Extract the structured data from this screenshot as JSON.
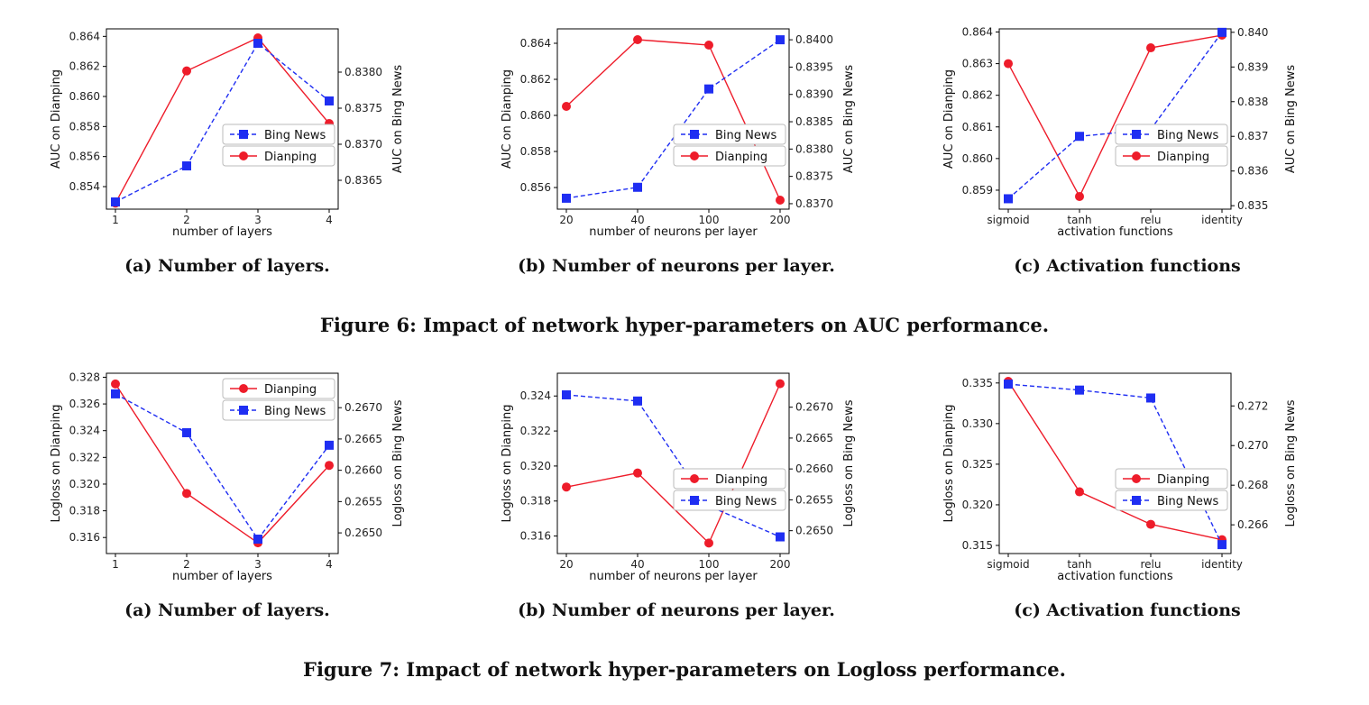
{
  "figure6": {
    "caption": "Figure 6: Impact of network hyper-parameters on AUC performance.",
    "subcaptions": [
      "(a) Number of layers.",
      "(b) Number of neurons per layer.",
      "(c) Activation functions"
    ]
  },
  "figure7": {
    "caption": "Figure 7: Impact of network hyper-parameters on Logloss performance.",
    "subcaptions": [
      "(a) Number of layers.",
      "(b) Number of neurons per layer.",
      "(c) Activation functions"
    ]
  },
  "colors": {
    "dianping": "#ee1c2a",
    "bing": "#1f2ef2"
  },
  "chart_data": [
    {
      "type": "line",
      "figure": "6a",
      "xlabel": "number of layers",
      "categories": [
        "1",
        "2",
        "3",
        "4"
      ],
      "left_axis": {
        "label": "AUC on Dianping",
        "ticks": [
          "0.854",
          "0.856",
          "0.858",
          "0.860",
          "0.862",
          "0.864"
        ],
        "ylim": [
          0.8525,
          0.8645
        ]
      },
      "right_axis": {
        "label": "AUC on Bing News",
        "ticks": [
          "0.8365",
          "0.8370",
          "0.8375",
          "0.8380"
        ],
        "ylim": [
          0.8361,
          0.8386
        ]
      },
      "legend": "center-right",
      "legend_order": [
        "Bing News",
        "Dianping"
      ],
      "series": [
        {
          "name": "Dianping",
          "axis": "left",
          "values": [
            0.8529,
            0.8617,
            0.8639,
            0.8582
          ]
        },
        {
          "name": "Bing News",
          "axis": "right",
          "values": [
            0.8362,
            0.8367,
            0.8384,
            0.8376
          ]
        }
      ]
    },
    {
      "type": "line",
      "figure": "6b",
      "xlabel": "number of neurons per layer",
      "categories": [
        "20",
        "40",
        "100",
        "200"
      ],
      "left_axis": {
        "label": "AUC on Dianping",
        "ticks": [
          "0.856",
          "0.858",
          "0.860",
          "0.862",
          "0.864"
        ],
        "ylim": [
          0.8548,
          0.8648
        ]
      },
      "right_axis": {
        "label": "AUC on Bing News",
        "ticks": [
          "0.8370",
          "0.8375",
          "0.8380",
          "0.8385",
          "0.8390",
          "0.8395",
          "0.8400"
        ],
        "ylim": [
          0.8369,
          0.8402
        ]
      },
      "legend": "center-right",
      "legend_order": [
        "Bing News",
        "Dianping"
      ],
      "series": [
        {
          "name": "Dianping",
          "axis": "left",
          "values": [
            0.8605,
            0.8642,
            0.8639,
            0.8553
          ]
        },
        {
          "name": "Bing News",
          "axis": "right",
          "values": [
            0.8371,
            0.8373,
            0.8391,
            0.84
          ]
        }
      ]
    },
    {
      "type": "line",
      "figure": "6c",
      "xlabel": "activation functions",
      "categories": [
        "sigmoid",
        "tanh",
        "relu",
        "identity"
      ],
      "left_axis": {
        "label": "AUC on Dianping",
        "ticks": [
          "0.859",
          "0.860",
          "0.861",
          "0.862",
          "0.863",
          "0.864"
        ],
        "ylim": [
          0.8584,
          0.8641
        ]
      },
      "right_axis": {
        "label": "AUC on Bing News",
        "ticks": [
          "0.835",
          "0.836",
          "0.837",
          "0.838",
          "0.839",
          "0.840"
        ],
        "ylim": [
          0.8349,
          0.8401
        ]
      },
      "legend": "center-right",
      "legend_order": [
        "Bing News",
        "Dianping"
      ],
      "series": [
        {
          "name": "Dianping",
          "axis": "left",
          "values": [
            0.863,
            0.8588,
            0.8635,
            0.8639
          ]
        },
        {
          "name": "Bing News",
          "axis": "right",
          "values": [
            0.8352,
            0.837,
            0.8372,
            0.84
          ]
        }
      ]
    },
    {
      "type": "line",
      "figure": "7a",
      "xlabel": "number of layers",
      "categories": [
        "1",
        "2",
        "3",
        "4"
      ],
      "left_axis": {
        "label": "Logloss on Dianping",
        "ticks": [
          "0.316",
          "0.318",
          "0.320",
          "0.322",
          "0.324",
          "0.326",
          "0.328"
        ],
        "ylim": [
          0.3148,
          0.3283
        ]
      },
      "right_axis": {
        "label": "Logloss on Bing News",
        "ticks": [
          "0.2650",
          "0.2655",
          "0.2660",
          "0.2665",
          "0.2670"
        ],
        "ylim": [
          0.26467,
          0.26755
        ]
      },
      "legend": "top-right",
      "legend_order": [
        "Dianping",
        "Bing News"
      ],
      "series": [
        {
          "name": "Dianping",
          "axis": "left",
          "values": [
            0.3275,
            0.3193,
            0.3156,
            0.3214
          ]
        },
        {
          "name": "Bing News",
          "axis": "right",
          "values": [
            0.26722,
            0.2666,
            0.2649,
            0.2664
          ]
        }
      ]
    },
    {
      "type": "line",
      "figure": "7b",
      "xlabel": "number of neurons per layer",
      "categories": [
        "20",
        "40",
        "100",
        "200"
      ],
      "left_axis": {
        "label": "Logloss on Dianping",
        "ticks": [
          "0.316",
          "0.318",
          "0.320",
          "0.322",
          "0.324"
        ],
        "ylim": [
          0.315,
          0.3253
        ]
      },
      "right_axis": {
        "label": "Logloss on Bing News",
        "ticks": [
          "0.2650",
          "0.2655",
          "0.2660",
          "0.2665",
          "0.2670"
        ],
        "ylim": [
          0.26463,
          0.26755
        ]
      },
      "legend": "center-right",
      "legend_order": [
        "Dianping",
        "Bing News"
      ],
      "series": [
        {
          "name": "Dianping",
          "axis": "left",
          "values": [
            0.3188,
            0.3196,
            0.3156,
            0.3247
          ]
        },
        {
          "name": "Bing News",
          "axis": "right",
          "values": [
            0.2672,
            0.2671,
            0.2654,
            0.2649
          ]
        }
      ]
    },
    {
      "type": "line",
      "figure": "7c",
      "xlabel": "activation functions",
      "categories": [
        "sigmoid",
        "tanh",
        "relu",
        "identity"
      ],
      "left_axis": {
        "label": "Logloss on Dianping",
        "ticks": [
          "0.315",
          "0.320",
          "0.325",
          "0.330",
          "0.335"
        ],
        "ylim": [
          0.314,
          0.3362
        ]
      },
      "right_axis": {
        "label": "Logloss on Bing News",
        "ticks": [
          "0.266",
          "0.268",
          "0.270",
          "0.272"
        ],
        "ylim": [
          0.26455,
          0.27365
        ]
      },
      "legend": "center-right",
      "legend_order": [
        "Dianping",
        "Bing News"
      ],
      "series": [
        {
          "name": "Dianping",
          "axis": "left",
          "values": [
            0.3352,
            0.3216,
            0.3176,
            0.3157
          ]
        },
        {
          "name": "Bing News",
          "axis": "right",
          "values": [
            0.2731,
            0.2728,
            0.2724,
            0.265
          ]
        }
      ]
    }
  ]
}
